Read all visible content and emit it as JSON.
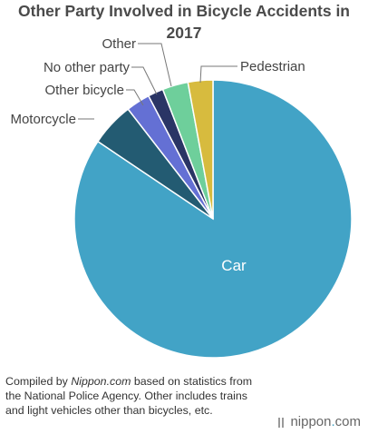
{
  "title": "Other Party Involved in Bicycle Accidents in 2017",
  "chart_data": {
    "type": "pie",
    "start_angle_deg": 0,
    "direction": "clockwise",
    "slices": [
      {
        "label": "Car",
        "value": 84.4,
        "color": "#42a3c6"
      },
      {
        "label": "Motorcycle",
        "value": 5.1,
        "color": "#235b72"
      },
      {
        "label": "Other bicycle",
        "value": 2.8,
        "color": "#6470d4"
      },
      {
        "label": "No other party",
        "value": 1.8,
        "color": "#2a3565"
      },
      {
        "label": "Other",
        "value": 3.0,
        "color": "#6ecf9b"
      },
      {
        "label": "Pedestrian",
        "value": 2.9,
        "color": "#d7bb3e"
      }
    ]
  },
  "footnote": {
    "prefix": "Compiled by ",
    "source": "Nippon.com",
    "suffix": " based on statistics from the National Police Agency. Other includes trains and light vehicles other than bicycles, etc."
  },
  "brand": {
    "name": "nippon",
    "dot": ".",
    "tld": "com"
  }
}
